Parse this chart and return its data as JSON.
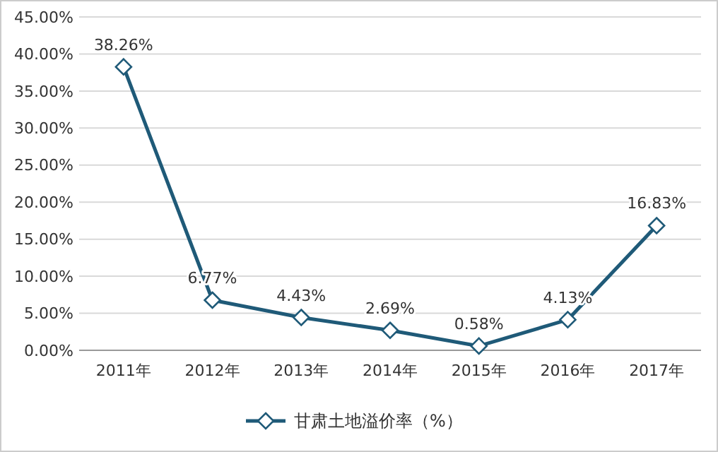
{
  "chart_data": {
    "type": "line",
    "categories": [
      "2011年",
      "2012年",
      "2013年",
      "2014年",
      "2015年",
      "2016年",
      "2017年"
    ],
    "series": [
      {
        "name": "甘肃土地溢价率（%）",
        "color": "#1f5a78",
        "values": [
          38.26,
          6.77,
          4.43,
          2.69,
          0.58,
          4.13,
          16.83
        ],
        "value_labels": [
          "38.26%",
          "6.77%",
          "4.43%",
          "2.69%",
          "0.58%",
          "4.13%",
          "16.83%"
        ]
      }
    ],
    "ylim": [
      0,
      45
    ],
    "yticks": [
      {
        "value": 0,
        "label": "0.00%"
      },
      {
        "value": 5,
        "label": "5.00%"
      },
      {
        "value": 10,
        "label": "10.00%"
      },
      {
        "value": 15,
        "label": "15.00%"
      },
      {
        "value": 20,
        "label": "20.00%"
      },
      {
        "value": 25,
        "label": "25.00%"
      },
      {
        "value": 30,
        "label": "30.00%"
      },
      {
        "value": 35,
        "label": "35.00%"
      },
      {
        "value": 40,
        "label": "40.00%"
      },
      {
        "value": 45,
        "label": "45.00%"
      }
    ],
    "grid": "y",
    "legend": "bottom",
    "marker": "diamond",
    "line_style": "solid"
  }
}
